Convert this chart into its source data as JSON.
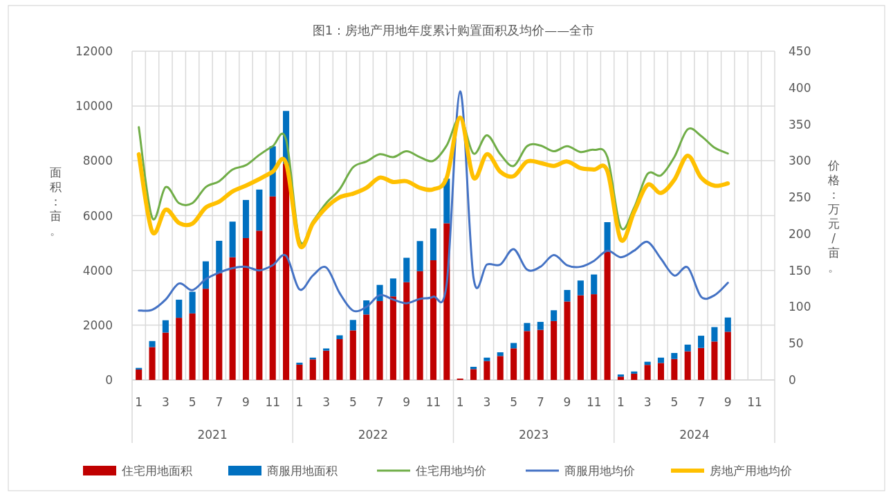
{
  "chart_data": {
    "type": "bar",
    "title": "图1：房地产用地年度累计购置面积及均价——全市",
    "ylabel": "面积：亩。",
    "y2label": "价格：万元/亩。",
    "categories": [
      "1",
      null,
      "3",
      null,
      "5",
      null,
      "7",
      null,
      "9",
      null,
      "11",
      null,
      "1",
      null,
      "3",
      null,
      "5",
      null,
      "7",
      null,
      "9",
      null,
      "11",
      null,
      "1",
      null,
      "3",
      null,
      "5",
      null,
      "7",
      null,
      "9",
      null,
      "11",
      null,
      "1",
      null,
      "3",
      null,
      "5",
      null,
      "7",
      null,
      "9",
      null,
      "11",
      null
    ],
    "annotations": [
      "2021",
      "2022",
      "2023",
      "2024"
    ],
    "stacked": true,
    "grid": true,
    "legend": "bottom",
    "ylim": [
      0,
      12000
    ],
    "yticks": [
      0,
      2000,
      4000,
      6000,
      8000,
      10000,
      12000
    ],
    "y2lim": [
      0,
      450
    ],
    "y2ticks": [
      0,
      50,
      100,
      150,
      200,
      250,
      300,
      350,
      400,
      450
    ],
    "series": [
      {
        "name": "住宅用地面积",
        "color": "#c00000",
        "values": [
          380,
          1200,
          1730,
          2270,
          2430,
          3330,
          3900,
          4480,
          5180,
          5450,
          6700,
          7900,
          560,
          750,
          1070,
          1490,
          1810,
          2390,
          2880,
          3050,
          3570,
          3970,
          4370,
          5720,
          50,
          395,
          690,
          875,
          1155,
          1785,
          1830,
          2150,
          2865,
          3090,
          3130,
          4690,
          120,
          230,
          550,
          620,
          765,
          1045,
          1170,
          1405,
          1760,
          null,
          null,
          null
        ]
      },
      {
        "name": "商服用地面积",
        "color": "#0070c0",
        "values": [
          60,
          220,
          450,
          660,
          790,
          1000,
          1180,
          1300,
          1390,
          1500,
          1830,
          1920,
          70,
          65,
          80,
          140,
          380,
          515,
          590,
          655,
          890,
          1100,
          1160,
          1630,
          null,
          85,
          125,
          135,
          195,
          295,
          290,
          395,
          420,
          540,
          720,
          1070,
          80,
          80,
          115,
          195,
          220,
          245,
          445,
          525,
          520,
          null,
          null,
          null
        ]
      },
      {
        "name": "住宅用地均价",
        "type": "line",
        "axis": "y2",
        "color": "#70ad47",
        "values": [
          346,
          222,
          264,
          242,
          242,
          264,
          272,
          288,
          294,
          308,
          320,
          329,
          192,
          217,
          242,
          261,
          291,
          299,
          309,
          305,
          313,
          305,
          300,
          321,
          359,
          310,
          335,
          309,
          293,
          320,
          321,
          313,
          320,
          312,
          315,
          305,
          209,
          236,
          282,
          280,
          305,
          343,
          334,
          318,
          310,
          null,
          null,
          null
        ]
      },
      {
        "name": "商服用地均价",
        "type": "line",
        "axis": "y2",
        "color": "#4472c4",
        "values": [
          95,
          96,
          110,
          132,
          123,
          138,
          147,
          153,
          155,
          150,
          157,
          170,
          124,
          143,
          154,
          119,
          95,
          100,
          116,
          110,
          105,
          111,
          114,
          132,
          395,
          140,
          158,
          158,
          179,
          151,
          155,
          171,
          157,
          155,
          163,
          177,
          168,
          177,
          189,
          166,
          143,
          154,
          114,
          116,
          133,
          null,
          null,
          null
        ]
      },
      {
        "name": "房地产用地均价",
        "type": "line",
        "axis": "y2",
        "color": "#ffc000",
        "values": [
          309,
          203,
          233,
          215,
          214,
          236,
          244,
          258,
          266,
          275,
          285,
          297,
          185,
          214,
          236,
          250,
          255,
          263,
          277,
          271,
          272,
          263,
          261,
          277,
          359,
          277,
          309,
          285,
          279,
          299,
          297,
          293,
          299,
          290,
          288,
          286,
          192,
          230,
          267,
          256,
          274,
          307,
          277,
          266,
          269,
          null,
          null,
          null
        ]
      }
    ]
  }
}
